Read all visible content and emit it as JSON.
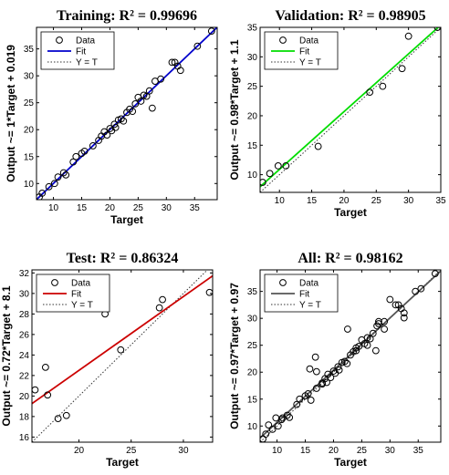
{
  "chart_data": [
    {
      "type": "scatter",
      "title": "Training: R² = 0.99696",
      "xlabel": "Target",
      "ylabel": "Output ~= 1*Target + 0.019",
      "xlim": [
        7,
        39
      ],
      "ylim": [
        7,
        39
      ],
      "xticks": [
        10,
        15,
        20,
        25,
        30,
        35
      ],
      "yticks": [
        10,
        15,
        20,
        25,
        30,
        35
      ],
      "grid": false,
      "legend_position": "top-left",
      "legend": [
        "Data",
        "Fit",
        "Y = T"
      ],
      "fit": {
        "slope": 1,
        "intercept": 0.019,
        "color": "#0000cc"
      },
      "series": [
        {
          "name": "Data",
          "points": [
            [
              7.5,
              7.5
            ],
            [
              8,
              8.2
            ],
            [
              9.2,
              9.4
            ],
            [
              10.2,
              10
            ],
            [
              10.8,
              11.2
            ],
            [
              11.8,
              12
            ],
            [
              12.2,
              11.6
            ],
            [
              13.5,
              14
            ],
            [
              14,
              15
            ],
            [
              15,
              15.6
            ],
            [
              15.5,
              16
            ],
            [
              17,
              17
            ],
            [
              18,
              18
            ],
            [
              18.5,
              18.8
            ],
            [
              19,
              19.6
            ],
            [
              19.5,
              19
            ],
            [
              20,
              20.2
            ],
            [
              20.3,
              19.8
            ],
            [
              20.8,
              21
            ],
            [
              21,
              20.4
            ],
            [
              21.5,
              21.8
            ],
            [
              22,
              22
            ],
            [
              22.4,
              21.6
            ],
            [
              23,
              23.2
            ],
            [
              23.5,
              23.8
            ],
            [
              24,
              23.4
            ],
            [
              24.5,
              24.8
            ],
            [
              25,
              26
            ],
            [
              25.5,
              25.3
            ],
            [
              26,
              26.4
            ],
            [
              26.5,
              26.2
            ],
            [
              27,
              27.2
            ],
            [
              27.5,
              24
            ],
            [
              28,
              29
            ],
            [
              29,
              29.4
            ],
            [
              31,
              32.5
            ],
            [
              31.5,
              32.5
            ],
            [
              32,
              31.8
            ],
            [
              32.5,
              31
            ],
            [
              35.5,
              35.5
            ],
            [
              38,
              38.3
            ]
          ]
        }
      ]
    },
    {
      "type": "scatter",
      "title": "Validation: R² = 0.98905",
      "xlabel": "Target",
      "ylabel": "Output ~= 0.98*Target + 1.1",
      "xlim": [
        7,
        35
      ],
      "ylim": [
        7,
        35
      ],
      "xticks": [
        10,
        15,
        20,
        25,
        30,
        35
      ],
      "yticks": [
        10,
        15,
        20,
        25,
        30,
        35
      ],
      "grid": false,
      "legend_position": "top-left",
      "legend": [
        "Data",
        "Fit",
        "Y = T"
      ],
      "fit": {
        "slope": 0.98,
        "intercept": 1.1,
        "color": "#00dd00"
      },
      "series": [
        {
          "name": "Data",
          "points": [
            [
              7.4,
              8.7
            ],
            [
              8.5,
              10.2
            ],
            [
              9.8,
              11.5
            ],
            [
              11,
              11.5
            ],
            [
              16,
              14.8
            ],
            [
              24,
              24
            ],
            [
              26,
              25
            ],
            [
              29,
              28
            ],
            [
              30,
              33.5
            ],
            [
              34.5,
              35
            ]
          ]
        }
      ]
    },
    {
      "type": "scatter",
      "title": "Test: R² = 0.86324",
      "xlabel": "Target",
      "ylabel": "Output ~= 0.72*Target + 8.1",
      "xlim": [
        15.5,
        32.8
      ],
      "ylim": [
        15.5,
        32.3
      ],
      "xticks": [
        20,
        25,
        30
      ],
      "yticks": [
        16,
        18,
        20,
        22,
        24,
        26,
        28,
        30,
        32
      ],
      "grid": false,
      "legend_position": "top-left",
      "legend": [
        "Data",
        "Fit",
        "Y = T"
      ],
      "fit": {
        "slope": 0.72,
        "intercept": 8.1,
        "color": "#cc0000"
      },
      "series": [
        {
          "name": "Data",
          "points": [
            [
              15.8,
              20.6
            ],
            [
              16.8,
              22.8
            ],
            [
              17,
              20.1
            ],
            [
              18,
              17.8
            ],
            [
              18.8,
              18.1
            ],
            [
              22.5,
              28
            ],
            [
              24,
              24.5
            ],
            [
              27.7,
              28.6
            ],
            [
              28,
              29.4
            ],
            [
              32.5,
              30.1
            ]
          ]
        }
      ]
    },
    {
      "type": "scatter",
      "title": "All: R² = 0.98162",
      "xlabel": "Target",
      "ylabel": "Output ~= 0.97*Target + 0.97",
      "xlim": [
        7,
        39
      ],
      "ylim": [
        7,
        39
      ],
      "xticks": [
        10,
        15,
        20,
        25,
        30,
        35
      ],
      "yticks": [
        10,
        15,
        20,
        25,
        30,
        35
      ],
      "grid": false,
      "legend_position": "top-left",
      "legend": [
        "Data",
        "Fit",
        "Y = T"
      ],
      "fit": {
        "slope": 0.97,
        "intercept": 0.97,
        "color": "#555555"
      },
      "series": [
        {
          "name": "Data",
          "points": [
            [
              7.5,
              7.6
            ],
            [
              8,
              8.5
            ],
            [
              8.5,
              10.2
            ],
            [
              9.2,
              9.4
            ],
            [
              9.8,
              11.5
            ],
            [
              10.2,
              10
            ],
            [
              10.8,
              11.2
            ],
            [
              11,
              11.5
            ],
            [
              11.8,
              12
            ],
            [
              12.2,
              11.6
            ],
            [
              13.5,
              14
            ],
            [
              14,
              15
            ],
            [
              15,
              15.6
            ],
            [
              15.5,
              16
            ],
            [
              15.8,
              20.6
            ],
            [
              16,
              14.8
            ],
            [
              16.8,
              22.8
            ],
            [
              17,
              20.1
            ],
            [
              17,
              17
            ],
            [
              18,
              17.8
            ],
            [
              18,
              18
            ],
            [
              18.5,
              18.8
            ],
            [
              18.8,
              18.1
            ],
            [
              19,
              19.6
            ],
            [
              19.5,
              19
            ],
            [
              20,
              20.2
            ],
            [
              20.3,
              19.8
            ],
            [
              20.8,
              21
            ],
            [
              21,
              20.4
            ],
            [
              21.5,
              21.8
            ],
            [
              22,
              22
            ],
            [
              22.4,
              21.6
            ],
            [
              22.5,
              28
            ],
            [
              23,
              23.2
            ],
            [
              23.5,
              23.8
            ],
            [
              24,
              24
            ],
            [
              24,
              24.5
            ],
            [
              24.5,
              24.8
            ],
            [
              25,
              26
            ],
            [
              25.5,
              25.3
            ],
            [
              26,
              25
            ],
            [
              26,
              26.4
            ],
            [
              26.5,
              26.2
            ],
            [
              27,
              27.2
            ],
            [
              27.5,
              24
            ],
            [
              27.7,
              28.6
            ],
            [
              28,
              29
            ],
            [
              28,
              29.4
            ],
            [
              29,
              28
            ],
            [
              29,
              29.4
            ],
            [
              30,
              33.5
            ],
            [
              31,
              32.5
            ],
            [
              31.5,
              32.5
            ],
            [
              32,
              31.8
            ],
            [
              32.5,
              30.1
            ],
            [
              32.5,
              31
            ],
            [
              34.5,
              35
            ],
            [
              35.5,
              35.5
            ],
            [
              38,
              38.3
            ]
          ]
        }
      ]
    }
  ]
}
